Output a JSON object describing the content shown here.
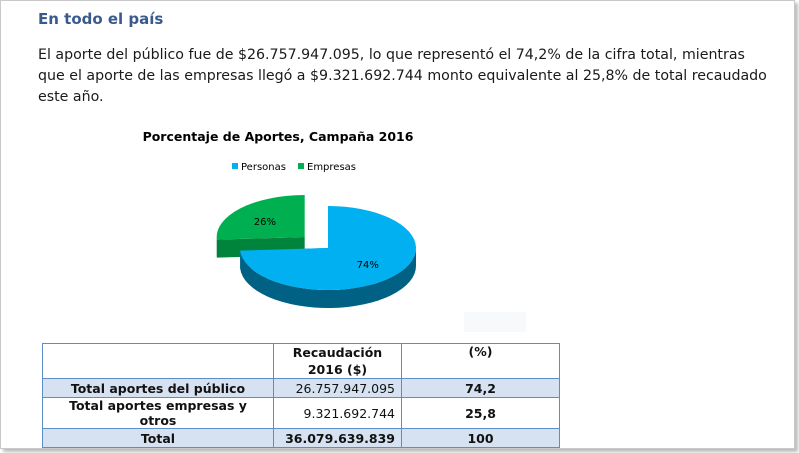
{
  "heading": "En todo el país",
  "paragraph": "El aporte del público fue de $26.757.947.095, lo que representó el 74,2% de la cifra total, mientras que el aporte de las empresas llegó a $9.321.692.744 monto equivalente al 25,8% de total recaudado este año.",
  "chart_data": {
    "type": "pie",
    "title": "Porcentaje de Aportes, Campaña 2016",
    "categories": [
      "Personas",
      "Empresas"
    ],
    "values": [
      74,
      26
    ],
    "data_labels": [
      "74%",
      "26%"
    ],
    "colors": [
      "#00b0f0",
      "#00b050"
    ],
    "legend": "top"
  },
  "table": {
    "header": [
      "",
      "Recaudación 2016 ($)",
      "(%)"
    ],
    "rows": [
      [
        "Total aportes del público",
        "26.757.947.095",
        "74,2"
      ],
      [
        "Total aportes empresas y otros",
        "9.321.692.744",
        "25,8"
      ],
      [
        "Total",
        "36.079.639.839",
        "100"
      ]
    ]
  }
}
